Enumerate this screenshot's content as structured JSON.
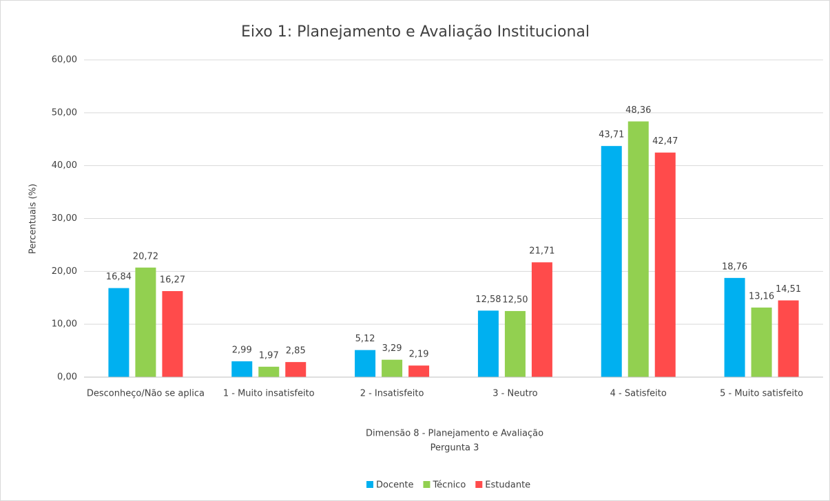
{
  "chart_data": {
    "type": "bar",
    "title": "Eixo 1: Planejamento e Avaliação Institucional",
    "ylabel": "Percentuais (%)",
    "xlabel": [
      "Dimensão 8 - Planejamento e Avaliação",
      "Pergunta 3"
    ],
    "categories": [
      "Desconheço/Não se aplica",
      "1 - Muito insatisfeito",
      "2 - Insatisfeito",
      "3 - Neutro",
      "4 - Satisfeito",
      "5 - Muito satisfeito"
    ],
    "series": [
      {
        "name": "Docente",
        "color": "#00b0f0",
        "values": [
          16.84,
          2.99,
          5.12,
          12.58,
          43.71,
          18.76
        ],
        "value_labels": [
          "16,84",
          "2,99",
          "5,12",
          "12,58",
          "43,71",
          "18,76"
        ]
      },
      {
        "name": "Técnico",
        "color": "#92d050",
        "values": [
          20.72,
          1.97,
          3.29,
          12.5,
          48.36,
          13.16
        ],
        "value_labels": [
          "20,72",
          "1,97",
          "3,29",
          "12,50",
          "48,36",
          "13,16"
        ]
      },
      {
        "name": "Estudante",
        "color": "#ff4b4b",
        "values": [
          16.27,
          2.85,
          2.19,
          21.71,
          42.47,
          14.51
        ],
        "value_labels": [
          "16,27",
          "2,85",
          "2,19",
          "21,71",
          "42,47",
          "14,51"
        ]
      }
    ],
    "ylim": [
      0,
      60
    ],
    "yticks": [
      {
        "value": 0,
        "label": "0,00"
      },
      {
        "value": 10,
        "label": "10,00"
      },
      {
        "value": 20,
        "label": "20,00"
      },
      {
        "value": 30,
        "label": "30,00"
      },
      {
        "value": 40,
        "label": "40,00"
      },
      {
        "value": 50,
        "label": "50,00"
      },
      {
        "value": 60,
        "label": "60,00"
      }
    ],
    "grid": true,
    "legend": "bottom"
  }
}
